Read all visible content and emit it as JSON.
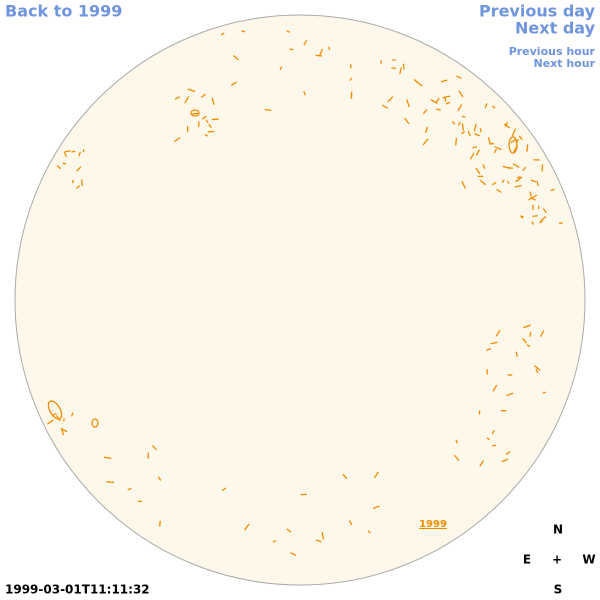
{
  "navigation": {
    "back": "Back to 1999",
    "previous_day": "Previous day",
    "next_day": "Next day",
    "previous_hour": "Previous hour",
    "next_hour": "Next hour"
  },
  "disk": {
    "year_link": "1999"
  },
  "compass": {
    "north": "N",
    "east": "E",
    "center": "+",
    "west": "W",
    "south": "S"
  },
  "timestamp": "1999-03-01T11:11:32"
}
